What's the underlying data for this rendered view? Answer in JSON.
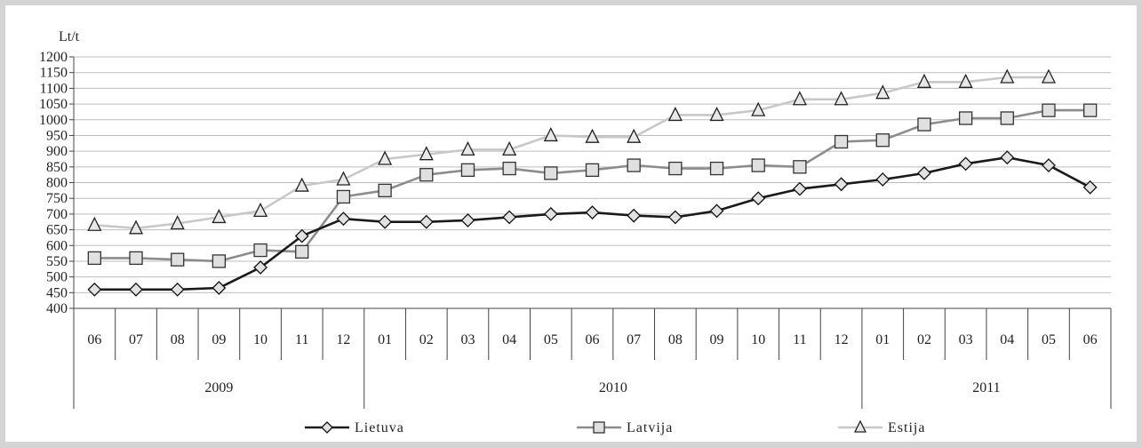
{
  "chart_data": {
    "type": "line",
    "ylabel": "Lt/t",
    "ylim": [
      400,
      1200
    ],
    "ytick_step": 50,
    "yticks": [
      "400",
      "450",
      "500",
      "550",
      "600",
      "650",
      "700",
      "750",
      "800",
      "850",
      "900",
      "950",
      "1000",
      "1050",
      "1100",
      "1150",
      "1200"
    ],
    "categories": [
      "06",
      "07",
      "08",
      "09",
      "10",
      "11",
      "12",
      "01",
      "02",
      "03",
      "04",
      "05",
      "06",
      "07",
      "08",
      "09",
      "10",
      "11",
      "12",
      "01",
      "02",
      "03",
      "04",
      "05",
      "06"
    ],
    "year_groups": [
      {
        "label": "2009",
        "count": 7
      },
      {
        "label": "2010",
        "count": 12
      },
      {
        "label": "2011",
        "count": 6
      }
    ],
    "grid": true,
    "legend_position": "bottom",
    "series": [
      {
        "name": "Lietuva",
        "color": "#1a1a1a",
        "marker": "diamond",
        "values": [
          460,
          460,
          460,
          465,
          530,
          630,
          685,
          675,
          675,
          680,
          690,
          700,
          705,
          695,
          690,
          710,
          750,
          780,
          795,
          810,
          830,
          860,
          880,
          855,
          785
        ]
      },
      {
        "name": "Latvija",
        "color": "#8c8c8c",
        "marker": "square",
        "values": [
          560,
          560,
          555,
          550,
          585,
          580,
          755,
          775,
          825,
          840,
          845,
          830,
          840,
          855,
          845,
          845,
          855,
          850,
          930,
          935,
          985,
          1005,
          1005,
          1030,
          1030
        ]
      },
      {
        "name": "Estija",
        "color": "#c8c8c8",
        "marker": "triangle",
        "values": [
          665,
          655,
          670,
          690,
          710,
          790,
          810,
          875,
          890,
          905,
          905,
          950,
          945,
          945,
          1015,
          1015,
          1030,
          1065,
          1065,
          1085,
          1120,
          1120,
          1135,
          1135,
          null
        ]
      }
    ]
  }
}
